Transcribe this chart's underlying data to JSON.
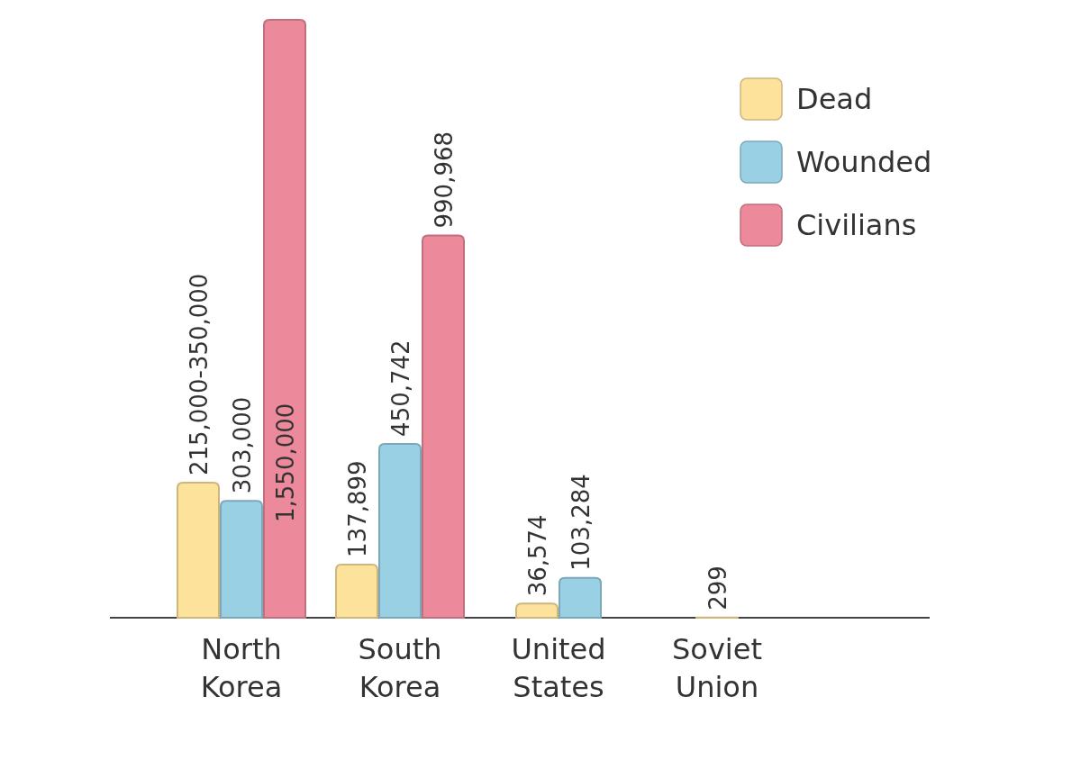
{
  "chart_data": {
    "type": "bar",
    "categories": [
      "North Korea",
      "South Korea",
      "United States",
      "Soviet Union"
    ],
    "series": [
      {
        "name": "Dead",
        "color": "#fde29b",
        "values": [
          350000,
          137899,
          36574,
          299
        ],
        "value_labels": [
          "215,000-350,000",
          "137,899",
          "36,574",
          "299"
        ]
      },
      {
        "name": "Wounded",
        "color": "#99d0e3",
        "values": [
          303000,
          450742,
          103284,
          null
        ],
        "value_labels": [
          "303,000",
          "450,742",
          "103,284",
          null
        ]
      },
      {
        "name": "Civilians",
        "color": "#ec899b",
        "values": [
          1550000,
          990968,
          null,
          null
        ],
        "value_labels": [
          "1,550,000",
          "990,968",
          null,
          null
        ]
      }
    ],
    "legend": "top right"
  }
}
